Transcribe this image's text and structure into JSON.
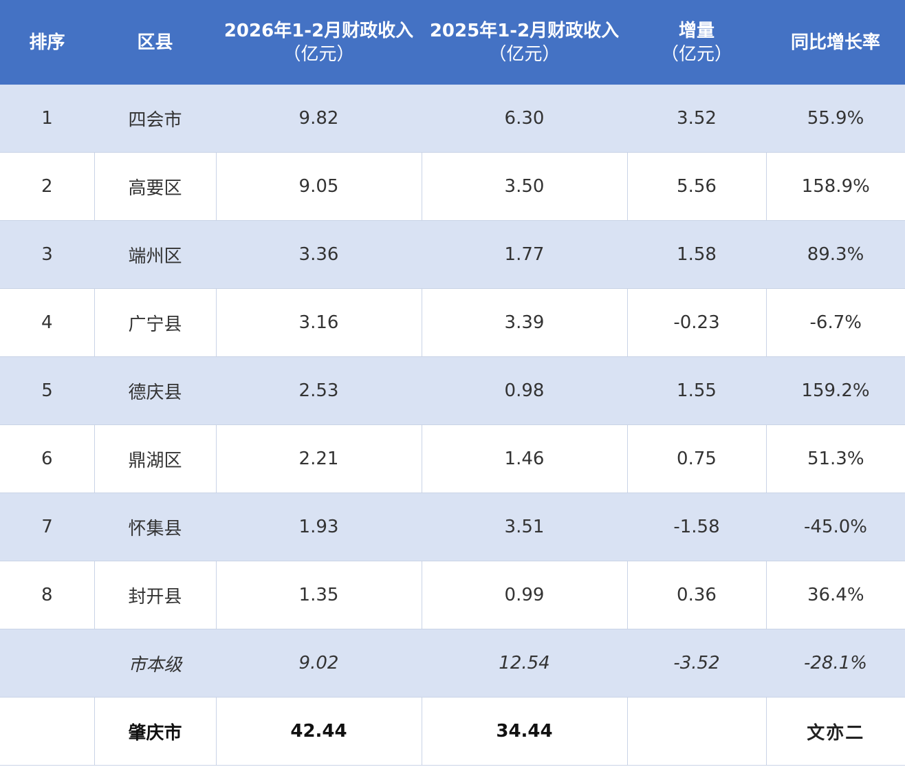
{
  "headers": [
    {
      "line1": "排序",
      "line2": ""
    },
    {
      "line1": "区县",
      "line2": ""
    },
    {
      "line1": "2026年1-2月财政收入",
      "line2": "（亿元）"
    },
    {
      "line1": "2025年1-2月财政收入",
      "line2": "（亿元）"
    },
    {
      "line1": "增量",
      "line2": "（亿元）"
    },
    {
      "line1": "同比增长率",
      "line2": ""
    }
  ],
  "rows": [
    {
      "rank": "1",
      "district": "四会市",
      "rev2026": "9.82",
      "rev2025": "6.30",
      "increase": "3.52",
      "growth": "55.9%"
    },
    {
      "rank": "2",
      "district": "高要区",
      "rev2026": "9.05",
      "rev2025": "3.50",
      "increase": "5.56",
      "growth": "158.9%"
    },
    {
      "rank": "3",
      "district": "端州区",
      "rev2026": "3.36",
      "rev2025": "1.77",
      "increase": "1.58",
      "growth": "89.3%"
    },
    {
      "rank": "4",
      "district": "广宁县",
      "rev2026": "3.16",
      "rev2025": "3.39",
      "increase": "-0.23",
      "growth": "-6.7%"
    },
    {
      "rank": "5",
      "district": "德庆县",
      "rev2026": "2.53",
      "rev2025": "0.98",
      "increase": "1.55",
      "growth": "159.2%"
    },
    {
      "rank": "6",
      "district": "鼎湖区",
      "rev2026": "2.21",
      "rev2025": "1.46",
      "increase": "0.75",
      "growth": "51.3%"
    },
    {
      "rank": "7",
      "district": "怀集县",
      "rev2026": "1.93",
      "rev2025": "3.51",
      "increase": "-1.58",
      "growth": "-45.0%"
    },
    {
      "rank": "8",
      "district": "封开县",
      "rev2026": "1.35",
      "rev2025": "0.99",
      "increase": "0.36",
      "growth": "36.4%"
    }
  ],
  "city_level": {
    "rank": "",
    "district": "市本级",
    "rev2026": "9.02",
    "rev2025": "12.54",
    "increase": "-3.52",
    "growth": "-28.1%"
  },
  "total": {
    "rank": "",
    "district": "肇庆市",
    "rev2026": "42.44",
    "rev2025": "34.44",
    "increase": "",
    "growth": "",
    "watermark": "文亦二"
  }
}
